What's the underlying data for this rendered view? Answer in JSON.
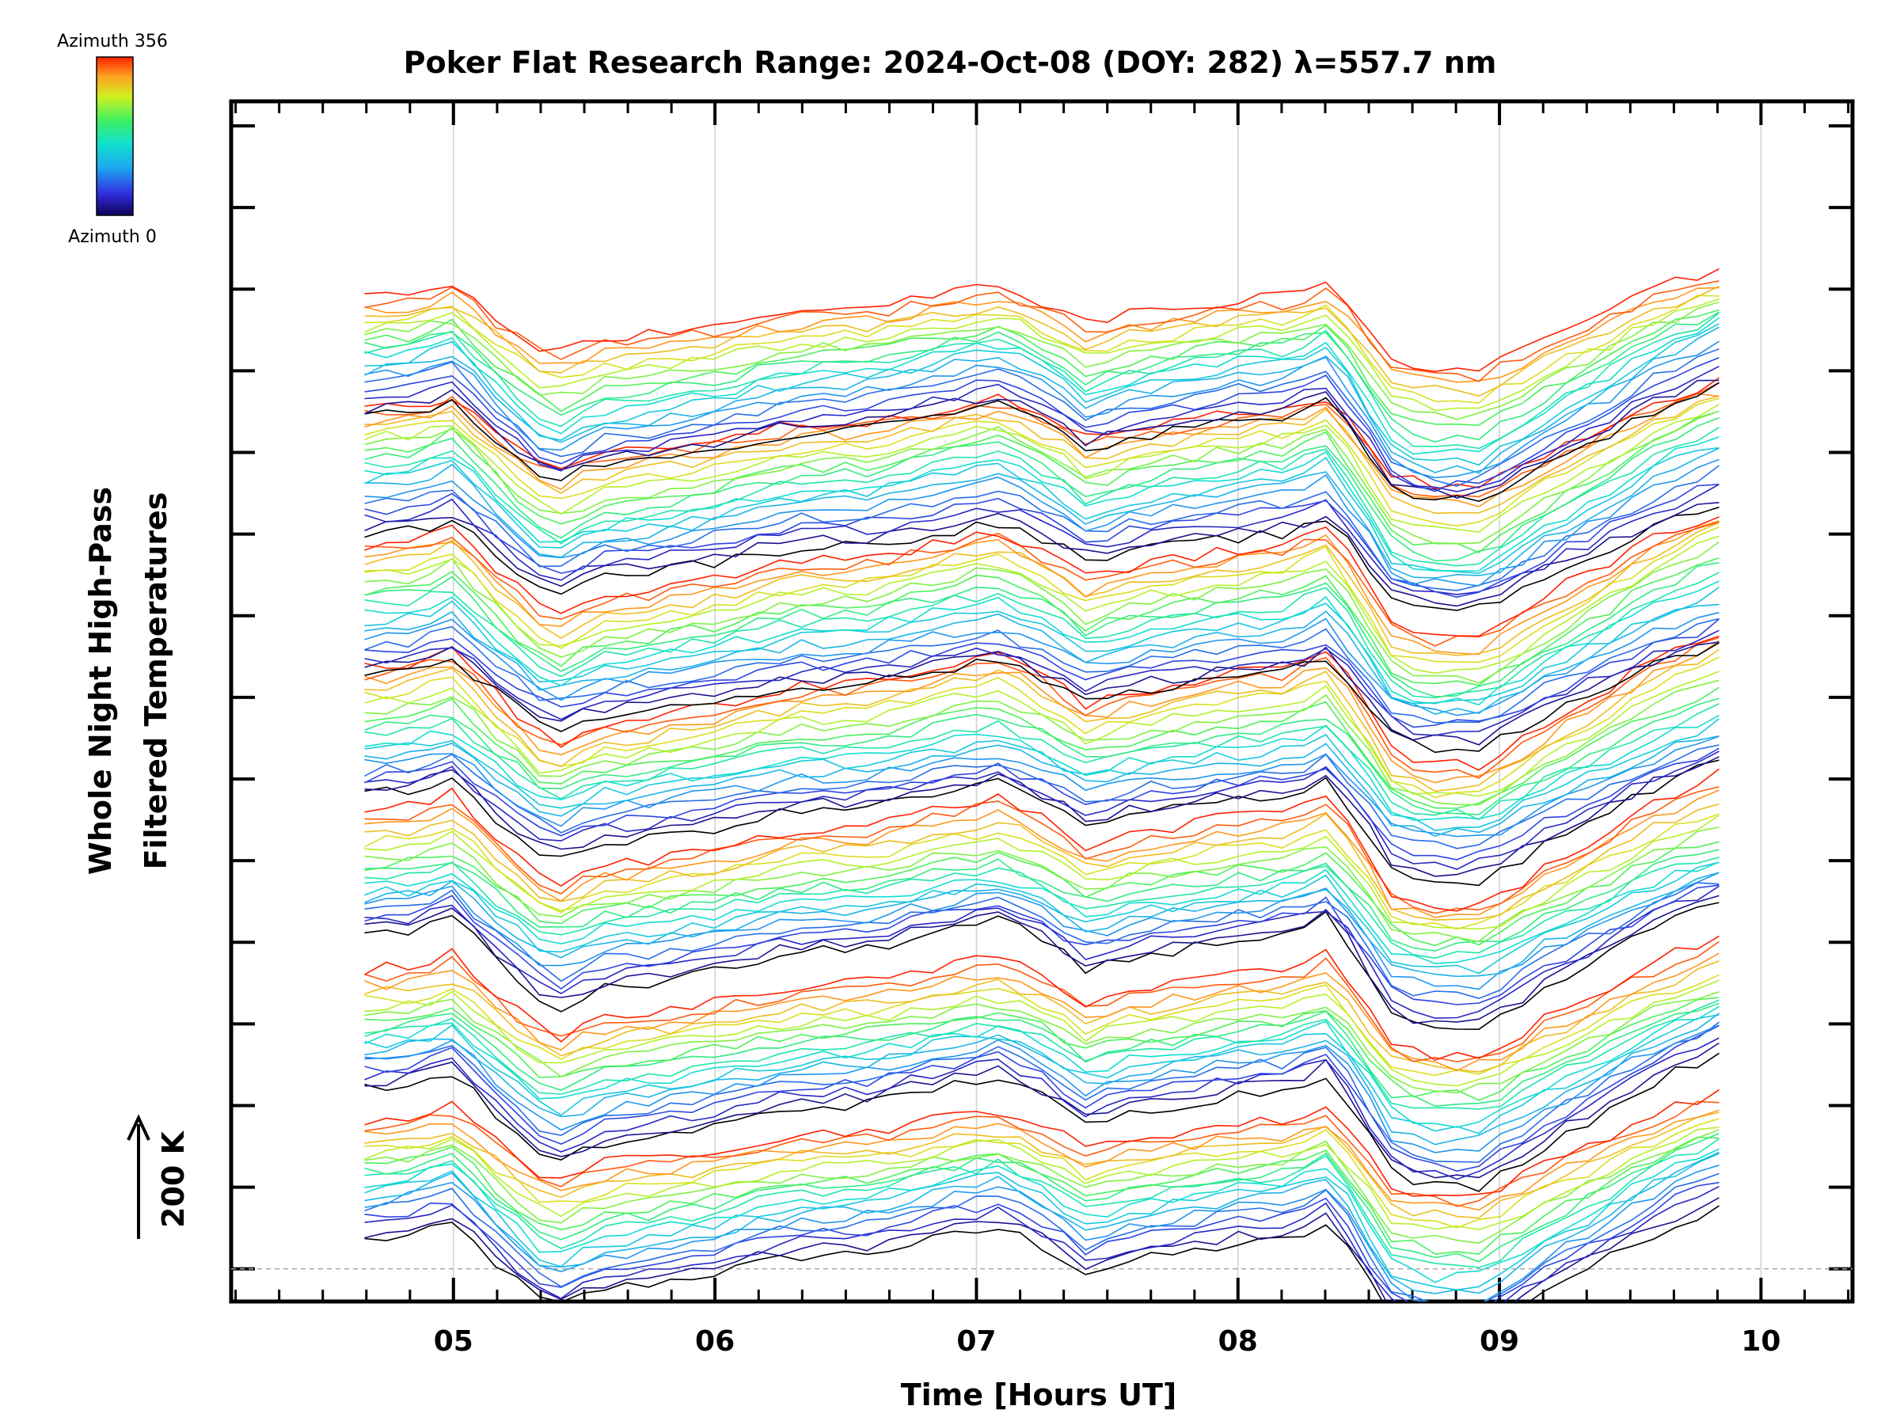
{
  "chart_data": {
    "type": "line",
    "title": "Poker Flat Research Range: 2024-Oct-08 (DOY: 282) λ=557.7 nm",
    "xlabel": "Time [Hours UT]",
    "ylabel_line1": "Whole Night High-Pass",
    "ylabel_line2": "Filtered Temperatures",
    "scale_bar_label": "200 K",
    "colorbar": {
      "top_label": "Azimuth 356",
      "bottom_label": "Azimuth 0",
      "min": 0,
      "max": 356
    },
    "xlim": [
      4.15,
      10.35
    ],
    "x_ticks": [
      {
        "value": 5,
        "label": "05"
      },
      {
        "value": 6,
        "label": "06"
      },
      {
        "value": 7,
        "label": "07"
      },
      {
        "value": 8,
        "label": "08"
      },
      {
        "value": 9,
        "label": "09"
      },
      {
        "value": 10,
        "label": "10"
      }
    ],
    "x_start": 4.66,
    "x_end": 9.84,
    "groups": 7,
    "lines_per_group": 19,
    "group_spacing_K": 160,
    "line_spacing_K": 8.4,
    "ylim_K": [
      -40,
      1430
    ],
    "key_times": [
      4.66,
      4.85,
      5.0,
      5.15,
      5.28,
      5.38,
      5.55,
      5.75,
      6.0,
      6.3,
      6.6,
      6.9,
      7.1,
      7.3,
      7.42,
      7.6,
      7.8,
      8.0,
      8.2,
      8.35,
      8.45,
      8.6,
      8.75,
      8.92,
      9.05,
      9.2,
      9.4,
      9.6,
      9.84
    ],
    "base_profile_K": [
      35,
      40,
      55,
      10,
      -25,
      -50,
      -25,
      -18,
      -5,
      15,
      20,
      40,
      50,
      20,
      -5,
      10,
      20,
      30,
      35,
      55,
      10,
      -60,
      -70,
      -70,
      -50,
      -20,
      10,
      45,
      75
    ],
    "bands": [
      {
        "offset_K": 0
      },
      {
        "offset_K": 180
      },
      {
        "offset_K": 370
      },
      {
        "offset_K": 545
      },
      {
        "offset_K": 700
      },
      {
        "offset_K": 870
      },
      {
        "offset_K": 1010
      }
    ]
  }
}
